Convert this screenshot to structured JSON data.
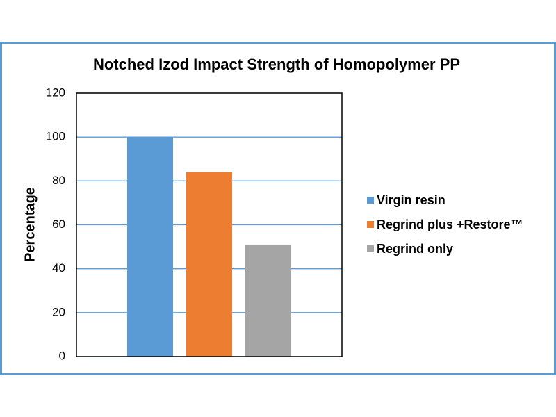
{
  "chart_data": {
    "type": "bar",
    "title": "Notched Izod Impact Strength of Homopolymer PP",
    "y_label": "Percentage",
    "categories": [
      null
    ],
    "series": [
      {
        "name": "Virgin resin",
        "color": "#5b9bd5",
        "values": [
          100
        ]
      },
      {
        "name": "Regrind plus +Restore™",
        "color": "#ed7d31",
        "values": [
          84
        ]
      },
      {
        "name": "Regrind only",
        "color": "#a5a5a5",
        "values": [
          51
        ]
      }
    ],
    "ylim": [
      0,
      120
    ],
    "yticks": [
      0,
      20,
      40,
      60,
      80,
      100,
      120
    ],
    "grid": true,
    "grid_color": "#5b9bd5",
    "legend": "right"
  }
}
